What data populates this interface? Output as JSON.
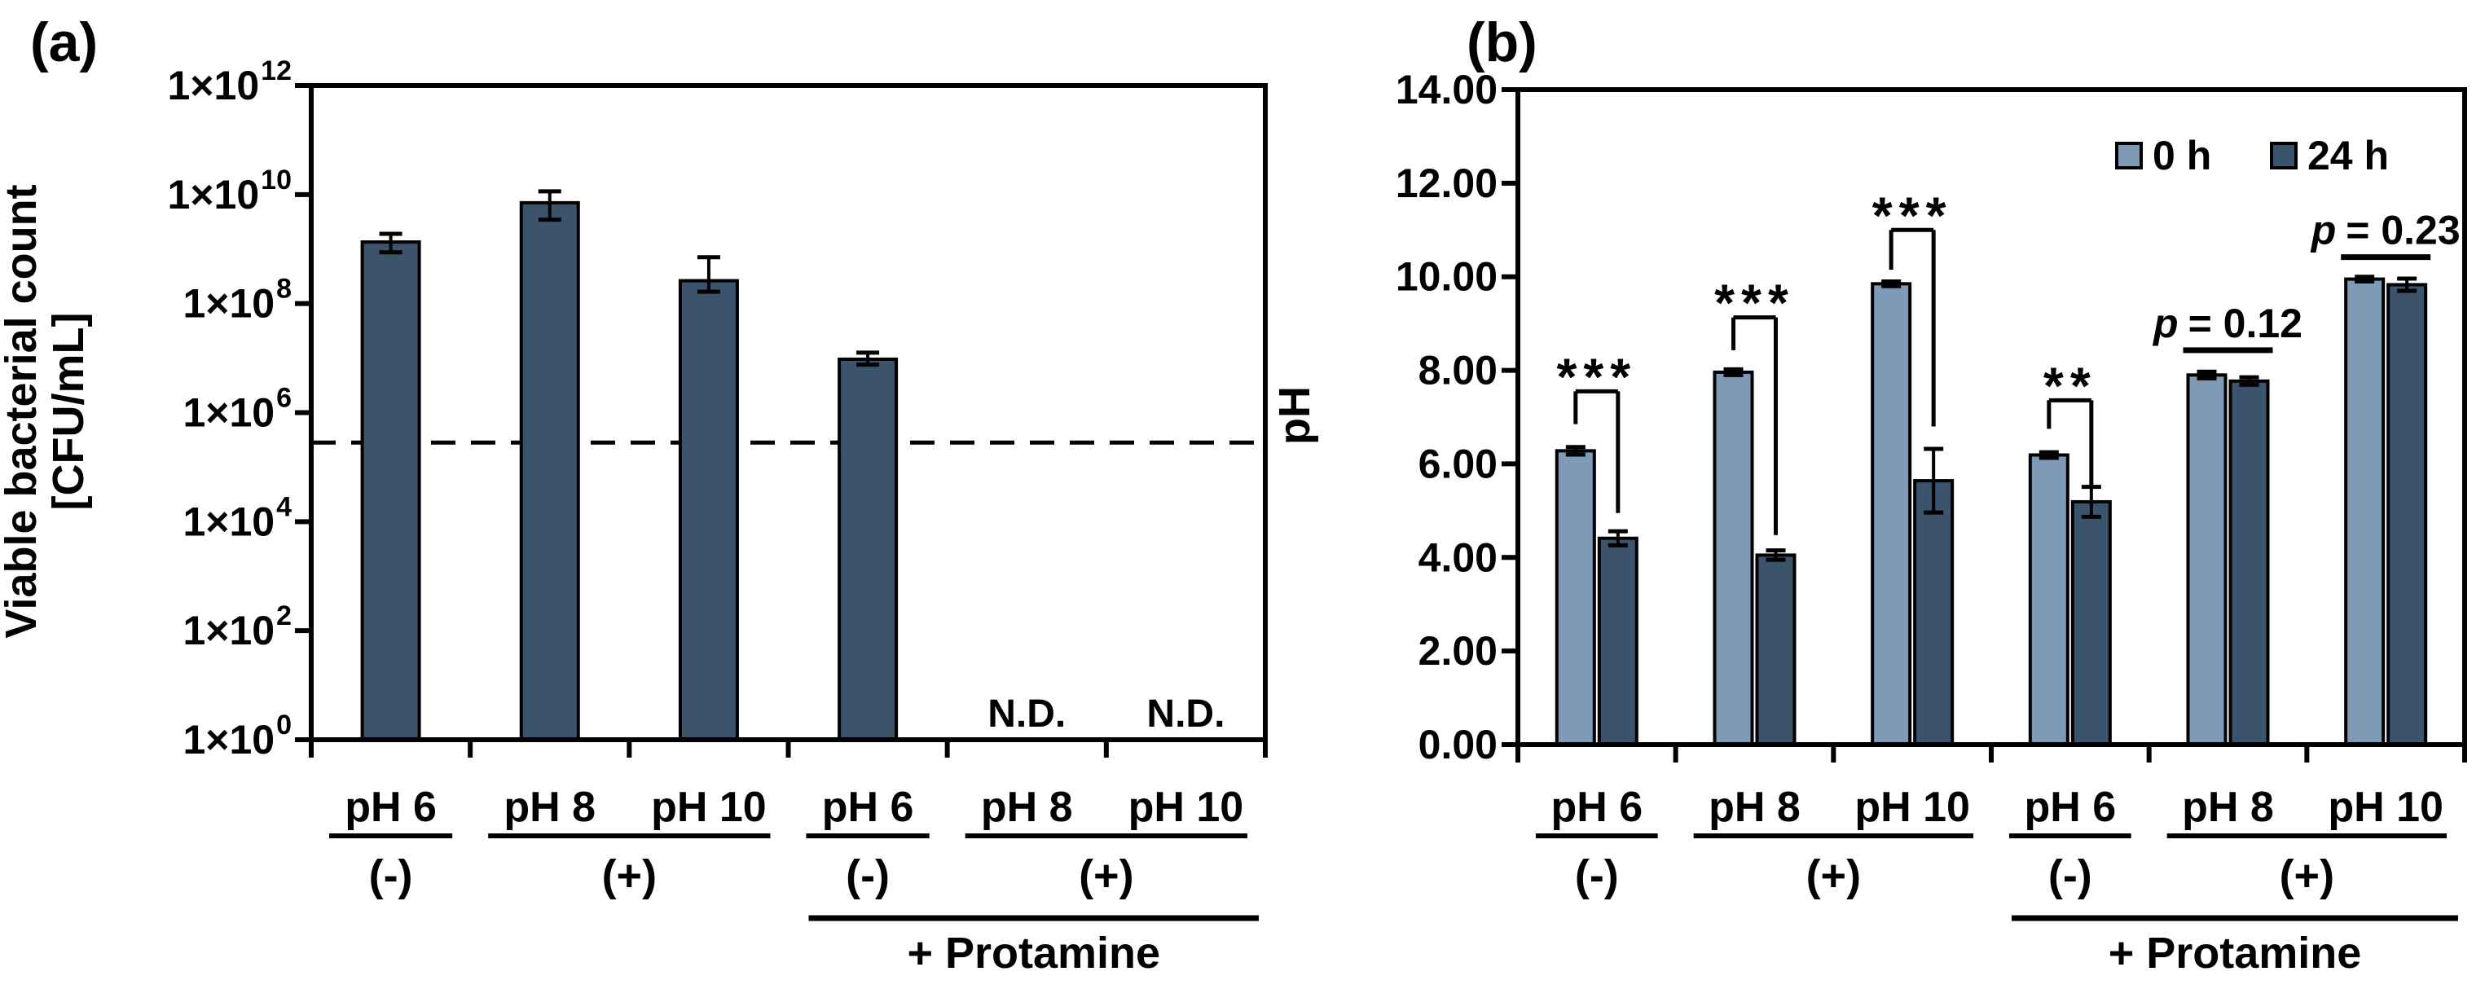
{
  "figure": {
    "background": "#ffffff",
    "axis_color": "#000000"
  },
  "panel_a": {
    "label": "(a)",
    "y_axis": {
      "title_lines": [
        "Viable bacterial count",
        "[CFU/mL]"
      ],
      "scale": "log10",
      "range_exponents": [
        0,
        12
      ],
      "ticks": [
        {
          "base": "1×10",
          "exp": "0"
        },
        {
          "base": "1×10",
          "exp": "2"
        },
        {
          "base": "1×10",
          "exp": "4"
        },
        {
          "base": "1×10",
          "exp": "6"
        },
        {
          "base": "1×10",
          "exp": "8"
        },
        {
          "base": "1×10",
          "exp": "10"
        },
        {
          "base": "1×10",
          "exp": "12"
        }
      ]
    },
    "x_axis": {
      "group_labels": [
        {
          "label": "(-)",
          "span": [
            0,
            0
          ]
        },
        {
          "label": "(+)",
          "span": [
            1,
            2
          ]
        },
        {
          "label": "(-)",
          "span": [
            3,
            3
          ]
        },
        {
          "label": "(+)",
          "span": [
            4,
            5
          ]
        }
      ],
      "bottom_label": {
        "label": "+ Protamine",
        "span": [
          3,
          5
        ]
      }
    }
  },
  "panel_b": {
    "label": "(b)",
    "y_axis": {
      "title": "pH",
      "scale": "linear",
      "range": [
        0,
        14
      ],
      "step": 2,
      "tick_labels": [
        "0.00",
        "2.00",
        "4.00",
        "6.00",
        "8.00",
        "10.00",
        "12.00",
        "14.00"
      ]
    },
    "x_axis": {
      "group_labels": [
        {
          "label": "(-)",
          "span": [
            0,
            0
          ]
        },
        {
          "label": "(+)",
          "span": [
            1,
            2
          ]
        },
        {
          "label": "(-)",
          "span": [
            3,
            3
          ]
        },
        {
          "label": "(+)",
          "span": [
            4,
            5
          ]
        }
      ],
      "bottom_label": {
        "label": "+ Protamine",
        "span": [
          3,
          5
        ]
      }
    },
    "legend": [
      {
        "label": "0 h",
        "color": "#7E9AB7"
      },
      {
        "label": "24 h",
        "color": "#3C536C"
      }
    ]
  },
  "chart_data": [
    {
      "type": "bar",
      "title": "",
      "xlabel": "",
      "ylabel": "Viable bacterial count [CFU/mL]",
      "categories": [
        "pH 6",
        "pH 8",
        "pH 10",
        "pH 6",
        "pH 8",
        "pH 10"
      ],
      "values_cfu_per_ml": [
        1400000000.0,
        7100000000.0,
        260000000.0,
        9500000.0,
        null,
        null
      ],
      "log10_exponents": [
        9.13,
        9.85,
        8.42,
        6.98,
        null,
        null
      ],
      "error_hi_exponents": [
        9.28,
        10.06,
        8.85,
        7.1,
        null,
        null
      ],
      "error_lo_exponents": [
        8.94,
        9.54,
        8.22,
        6.88,
        null,
        null
      ],
      "not_detected_label": "N.D.",
      "detection_limit": {
        "exponent": 5.45,
        "approx_value_cfu_per_ml": 280000.0,
        "style": "dashed"
      },
      "ylim_exponents": [
        0,
        12
      ],
      "bar_color": "#3C536C",
      "grid": false
    },
    {
      "type": "bar",
      "title": "",
      "xlabel": "",
      "ylabel": "pH",
      "categories": [
        "pH 6",
        "pH 8",
        "pH 10",
        "pH 6",
        "pH 8",
        "pH 10"
      ],
      "series": [
        {
          "name": "0 h",
          "color": "#7E9AB7",
          "values": [
            6.28,
            7.96,
            9.85,
            6.19,
            7.9,
            9.95
          ],
          "errors": [
            0.08,
            0.06,
            0.05,
            0.06,
            0.07,
            0.05
          ]
        },
        {
          "name": "24 h",
          "color": "#3C536C",
          "values": [
            4.41,
            4.05,
            5.64,
            5.19,
            7.77,
            9.83
          ],
          "errors": [
            0.15,
            0.1,
            0.68,
            0.32,
            0.08,
            0.13
          ]
        }
      ],
      "ylim": [
        0,
        14
      ],
      "grid": false,
      "legend_position": "top-right-inside",
      "annotations": {
        "significance": [
          {
            "group": 0,
            "stars": "***",
            "top_ph": 7.55,
            "left_drop_ph": 6.85,
            "right_drop_ph": 4.95
          },
          {
            "group": 1,
            "stars": "***",
            "top_ph": 9.13,
            "left_drop_ph": 8.43,
            "right_drop_ph": 4.48
          },
          {
            "group": 2,
            "stars": "***",
            "top_ph": 11.0,
            "left_drop_ph": 10.15,
            "right_drop_ph": 6.8
          },
          {
            "group": 3,
            "stars": "**",
            "top_ph": 7.36,
            "left_drop_ph": 6.75,
            "right_drop_ph": 5.55
          }
        ],
        "p_values": [
          {
            "group": 4,
            "italic": "p",
            "text": "= 0.12",
            "line_ph": 8.43
          },
          {
            "group": 5,
            "italic": "p",
            "text": "= 0.23",
            "line_ph": 10.42
          }
        ]
      }
    }
  ]
}
